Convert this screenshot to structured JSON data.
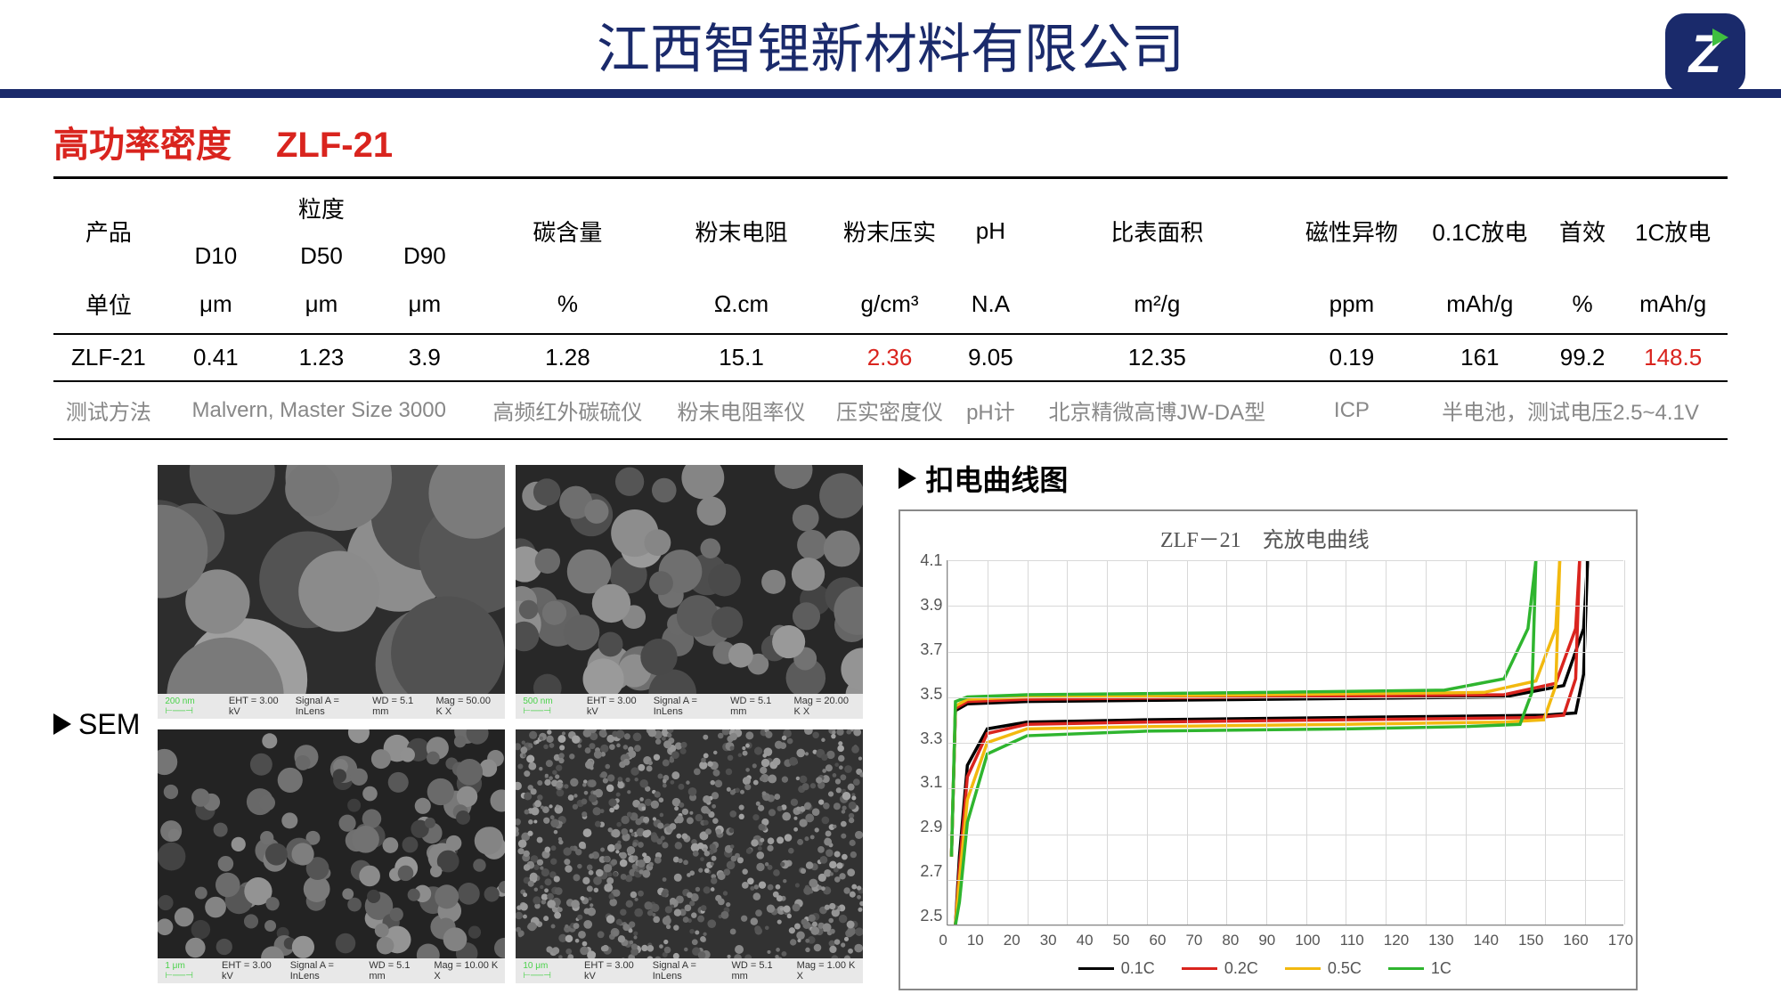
{
  "header": {
    "company": "江西智锂新材料有限公司"
  },
  "subtitle": {
    "label": "高功率密度",
    "model": "ZLF-21"
  },
  "table": {
    "headers": {
      "product": "产品",
      "particle": "粒度",
      "d10": "D10",
      "d50": "D50",
      "d90": "D90",
      "carbon": "碳含量",
      "resist": "粉末电阻",
      "compact": "粉末压实",
      "ph": "pH",
      "surface": "比表面积",
      "magnetic": "磁性异物",
      "discharge01c": "0.1C放电",
      "firsteff": "首效",
      "discharge1c": "1C放电",
      "unit": "单位"
    },
    "units": {
      "d10": "μm",
      "d50": "μm",
      "d90": "μm",
      "carbon": "%",
      "resist": "Ω.cm",
      "compact": "g/cm³",
      "ph": "N.A",
      "surface": "m²/g",
      "magnetic": "ppm",
      "discharge01c": "mAh/g",
      "firsteff": "%",
      "discharge1c": "mAh/g"
    },
    "data": {
      "product": "ZLF-21",
      "d10": "0.41",
      "d50": "1.23",
      "d90": "3.9",
      "carbon": "1.28",
      "resist": "15.1",
      "compact": "2.36",
      "ph": "9.05",
      "surface": "12.35",
      "magnetic": "0.19",
      "discharge01c": "161",
      "firsteff": "99.2",
      "discharge1c": "148.5"
    },
    "methods": {
      "label": "测试方法",
      "particle": "Malvern, Master Size 3000",
      "carbon": "高频红外碳硫仪",
      "resist": "粉末电阻率仪",
      "compact": "压实密度仪",
      "ph": "pH计",
      "surface": "北京精微高博JW-DA型",
      "magnetic": "ICP",
      "battery": "半电池，测试电压2.5~4.1V"
    }
  },
  "sem": {
    "label": "SEM",
    "captions": [
      {
        "scale": "200 nm",
        "eht": "EHT = 3.00 kV",
        "sig": "Signal A = InLens",
        "wd": "WD = 5.1 mm",
        "mag": "Mag = 50.00 K X"
      },
      {
        "scale": "500 nm",
        "eht": "EHT = 3.00 kV",
        "sig": "Signal A = InLens",
        "wd": "WD = 5.1 mm",
        "mag": "Mag = 20.00 K X"
      },
      {
        "scale": "1 μm",
        "eht": "EHT = 3.00 kV",
        "sig": "Signal A = InLens",
        "wd": "WD = 5.1 mm",
        "mag": "Mag = 10.00 K X"
      },
      {
        "scale": "10 μm",
        "eht": "EHT = 3.00 kV",
        "sig": "Signal A = InLens",
        "wd": "WD = 5.1 mm",
        "mag": "Mag = 1.00 K X"
      }
    ]
  },
  "chart": {
    "section_title": "扣电曲线图",
    "plot_title": "ZLF－21　充放电曲线",
    "xlim": [
      0,
      170
    ],
    "ylim": [
      2.5,
      4.1
    ],
    "yticks": [
      2.5,
      2.7,
      2.9,
      3.1,
      3.3,
      3.5,
      3.7,
      3.9,
      4.1
    ],
    "xticks": [
      0,
      10,
      20,
      30,
      40,
      50,
      60,
      70,
      80,
      90,
      100,
      110,
      120,
      130,
      140,
      150,
      160,
      170
    ],
    "grid_color": "#d8d8d8",
    "series": [
      {
        "name": "0.1C",
        "color": "#000000",
        "charge": [
          [
            1,
            2.8
          ],
          [
            2,
            3.44
          ],
          [
            5,
            3.47
          ],
          [
            20,
            3.48
          ],
          [
            80,
            3.49
          ],
          [
            140,
            3.5
          ],
          [
            155,
            3.55
          ],
          [
            160,
            3.8
          ],
          [
            161,
            4.1
          ]
        ],
        "discharge": [
          [
            161,
            4.1
          ],
          [
            160,
            3.6
          ],
          [
            158,
            3.43
          ],
          [
            150,
            3.42
          ],
          [
            100,
            3.41
          ],
          [
            50,
            3.4
          ],
          [
            20,
            3.39
          ],
          [
            10,
            3.36
          ],
          [
            5,
            3.2
          ],
          [
            3,
            2.8
          ],
          [
            2,
            2.5
          ]
        ]
      },
      {
        "name": "0.2C",
        "color": "#d9241e",
        "charge": [
          [
            1,
            2.8
          ],
          [
            2,
            3.45
          ],
          [
            5,
            3.48
          ],
          [
            20,
            3.49
          ],
          [
            80,
            3.5
          ],
          [
            140,
            3.51
          ],
          [
            153,
            3.56
          ],
          [
            158,
            3.8
          ],
          [
            159,
            4.1
          ]
        ],
        "discharge": [
          [
            159,
            4.1
          ],
          [
            158,
            3.58
          ],
          [
            155,
            3.42
          ],
          [
            148,
            3.41
          ],
          [
            100,
            3.4
          ],
          [
            50,
            3.39
          ],
          [
            20,
            3.38
          ],
          [
            10,
            3.34
          ],
          [
            5,
            3.15
          ],
          [
            3,
            2.75
          ],
          [
            2,
            2.5
          ]
        ]
      },
      {
        "name": "0.5C",
        "color": "#f2b90f",
        "charge": [
          [
            1,
            2.8
          ],
          [
            2,
            3.46
          ],
          [
            5,
            3.49
          ],
          [
            20,
            3.5
          ],
          [
            80,
            3.51
          ],
          [
            135,
            3.52
          ],
          [
            148,
            3.57
          ],
          [
            153,
            3.8
          ],
          [
            154,
            4.1
          ]
        ],
        "discharge": [
          [
            154,
            4.1
          ],
          [
            153,
            3.55
          ],
          [
            150,
            3.4
          ],
          [
            140,
            3.39
          ],
          [
            100,
            3.38
          ],
          [
            50,
            3.37
          ],
          [
            20,
            3.36
          ],
          [
            10,
            3.3
          ],
          [
            5,
            3.05
          ],
          [
            3,
            2.7
          ],
          [
            2,
            2.5
          ]
        ]
      },
      {
        "name": "1C",
        "color": "#2fb52f",
        "charge": [
          [
            1,
            2.8
          ],
          [
            2,
            3.48
          ],
          [
            5,
            3.5
          ],
          [
            20,
            3.51
          ],
          [
            80,
            3.52
          ],
          [
            125,
            3.53
          ],
          [
            140,
            3.58
          ],
          [
            146,
            3.8
          ],
          [
            148,
            4.1
          ]
        ],
        "discharge": [
          [
            148,
            4.1
          ],
          [
            147,
            3.52
          ],
          [
            144,
            3.38
          ],
          [
            130,
            3.37
          ],
          [
            100,
            3.36
          ],
          [
            50,
            3.35
          ],
          [
            20,
            3.33
          ],
          [
            10,
            3.25
          ],
          [
            5,
            2.95
          ],
          [
            3,
            2.6
          ],
          [
            2,
            2.5
          ]
        ]
      }
    ]
  }
}
